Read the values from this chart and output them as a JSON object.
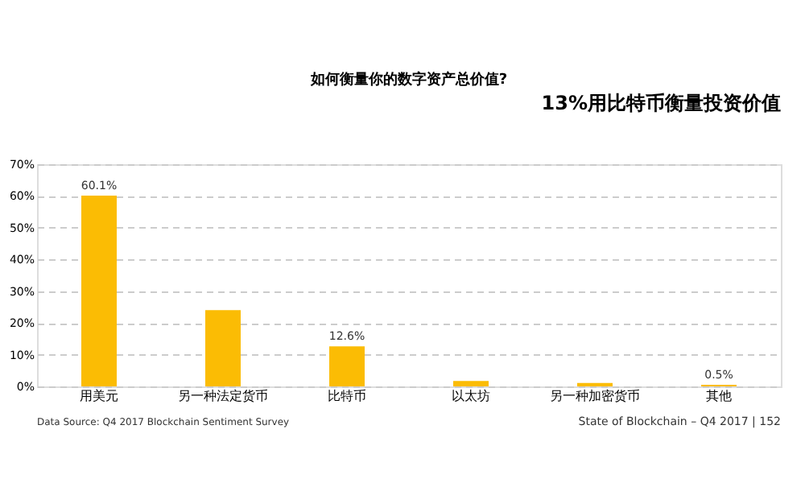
{
  "chart_data": {
    "type": "bar",
    "title": "如何衡量你的数字资产总价值?",
    "categories": [
      "用美元",
      "另一种法定货币",
      "比特币",
      "以太坊",
      "另一种加密货币",
      "其他"
    ],
    "values": [
      60.1,
      24.0,
      12.6,
      1.7,
      1.1,
      0.5
    ],
    "value_labels": [
      "60.1%",
      null,
      "12.6%",
      null,
      null,
      "0.5%"
    ],
    "color": "#fbbc04",
    "ylim": [
      0,
      70
    ],
    "yticks": [
      {
        "value": 0,
        "label": "0%"
      },
      {
        "value": 10,
        "label": "10%"
      },
      {
        "value": 20,
        "label": "20%"
      },
      {
        "value": 30,
        "label": "30%"
      },
      {
        "value": 40,
        "label": "40%"
      },
      {
        "value": 50,
        "label": "50%"
      },
      {
        "value": 60,
        "label": "60%"
      },
      {
        "value": 70,
        "label": "70%"
      }
    ],
    "grid": "y",
    "annotations": [
      "13%用比特币衡量投资价值",
      "Data Source: Q4 2017 Blockchain Sentiment Survey",
      "State of Blockchain – Q4 2017 | 152"
    ]
  }
}
